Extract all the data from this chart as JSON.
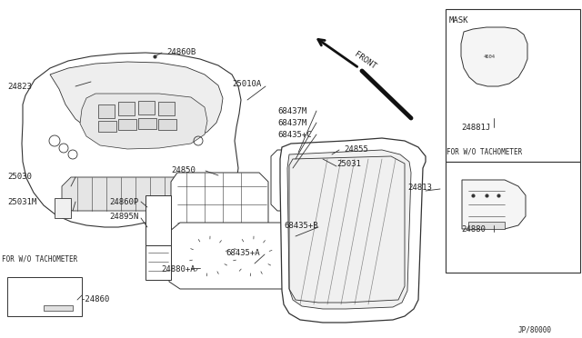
{
  "bg_color": "#ffffff",
  "line_color": "#333333",
  "text_color": "#222222",
  "fig_width": 6.4,
  "fig_height": 3.72,
  "dpi": 100,
  "watermark": "JP/80000",
  "labels": [
    [
      "24823",
      48,
      95,
      "left"
    ],
    [
      "25030",
      48,
      192,
      "left"
    ],
    [
      "25031M",
      48,
      220,
      "left"
    ],
    [
      "24860B",
      183,
      55,
      "left"
    ],
    [
      "25010A",
      255,
      90,
      "left"
    ],
    [
      "68437M",
      305,
      120,
      "left"
    ],
    [
      "68437M",
      305,
      133,
      "left"
    ],
    [
      "68435+C",
      305,
      146,
      "left"
    ],
    [
      "24855",
      377,
      162,
      "left"
    ],
    [
      "25031",
      370,
      180,
      "left"
    ],
    [
      "24850",
      186,
      185,
      "left"
    ],
    [
      "24860P",
      117,
      220,
      "left"
    ],
    [
      "24895N",
      117,
      238,
      "left"
    ],
    [
      "68435+B",
      310,
      248,
      "left"
    ],
    [
      "68435+A",
      246,
      278,
      "left"
    ],
    [
      "24880+A",
      175,
      295,
      "left"
    ],
    [
      "24813",
      447,
      205,
      "left"
    ],
    [
      "MASK",
      498,
      22,
      "left"
    ],
    [
      "24881J",
      510,
      135,
      "left"
    ],
    [
      "FOR W/O TACHOMETER",
      497,
      165,
      "left"
    ],
    [
      "24880",
      510,
      250,
      "left"
    ],
    [
      "FOR W/O TACHOMETER",
      2,
      282,
      "left"
    ],
    [
      "24860",
      88,
      328,
      "left"
    ],
    [
      "FRONT",
      385,
      62,
      "left"
    ]
  ]
}
